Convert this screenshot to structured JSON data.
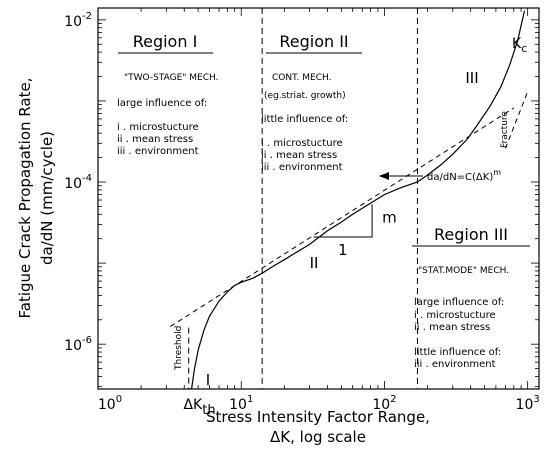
{
  "chart_data": {
    "type": "line",
    "title": "",
    "xlabel_line1": "Stress Intensity Factor Range,",
    "xlabel_line2": "ΔK, log scale",
    "ylabel_line1": "Fatigue Crack Propagation Rate,",
    "ylabel_line2": "da/dN  (mm/cycle)",
    "x_scale": "log",
    "y_scale": "log",
    "xlim": [
      1,
      1200
    ],
    "ylim": [
      2.8e-07,
      0.014
    ],
    "x_ticks": [
      {
        "value": 1,
        "base": "10",
        "exp": "0"
      },
      {
        "value": 10,
        "base": "10",
        "exp": "1"
      },
      {
        "value": 100,
        "base": "10",
        "exp": "2"
      },
      {
        "value": 1000,
        "base": "10",
        "exp": "3"
      }
    ],
    "y_ticks": [
      {
        "value": 1e-06,
        "base": "10",
        "exp": "-6"
      },
      {
        "value": 0.0001,
        "base": "10",
        "exp": "-4"
      },
      {
        "value": 0.01,
        "base": "10",
        "exp": "-2"
      }
    ],
    "region_boundaries_x": [
      14,
      170
    ],
    "threshold_x": 4.5,
    "threshold_label": "ΔK",
    "threshold_sub": "th",
    "series": [
      {
        "x": [
          4.5,
          4.7,
          5,
          5.5,
          6,
          7,
          8,
          9,
          10,
          12,
          14,
          17,
          20,
          25,
          30,
          40,
          50,
          60,
          80,
          100,
          130,
          170,
          200,
          250,
          300,
          380,
          450,
          550,
          650,
          750,
          850,
          950
        ],
        "y": [
          2.8e-07,
          4.8e-07,
          8.4e-07,
          1.5e-06,
          2.2e-06,
          3.4e-06,
          4.4e-06,
          5.3e-06,
          5.8e-06,
          6.5e-06,
          7.5e-06,
          9.3e-06,
          1.1e-05,
          1.4e-05,
          1.7e-05,
          2.5e-05,
          3.2e-05,
          4e-05,
          5.5e-05,
          7e-05,
          8.5e-05,
          0.0001,
          0.000122,
          0.000165,
          0.00022,
          0.00034,
          0.00052,
          0.00088,
          0.0015,
          0.0028,
          0.0055,
          0.013
        ]
      }
    ],
    "paris_fit_line": {
      "x": [
        3.2,
        800
      ],
      "y": [
        1.65e-06,
        0.00082
      ]
    },
    "slope_triangle": {
      "x1": 32,
      "x2": 82,
      "y1": 2.1e-05,
      "y2": 5.3e-05,
      "run_label": "1",
      "rise_label": "m"
    },
    "fracture_line": {
      "x": [
        700,
        1000
      ],
      "y": [
        0.00026,
        0.0013
      ],
      "label": "Fracture"
    },
    "kc_label": "K",
    "kc_sub": "c",
    "curve_stage_labels": {
      "stage1": "I",
      "stage2": "II",
      "stage3": "III"
    },
    "threshold_text": "Threshold",
    "equation": {
      "text": "da/dN=C(ΔK)",
      "sup": "m"
    },
    "regions": [
      {
        "title": "Region I",
        "mechanism": "\"TWO-STAGE\" MECH.",
        "influence1": "large influence of:",
        "items1": [
          "i  . microstucture",
          "ii  . mean stress",
          "iii  . environment"
        ]
      },
      {
        "title": "Region II",
        "mechanism": "CONT. MECH.",
        "note": "(eg.striat. growth)",
        "influence1": "little influence of:",
        "items1": [
          "i  . microstucture",
          "ii  . mean stress",
          "iii  . environment"
        ]
      },
      {
        "title": "Region III",
        "mechanism": "\"STAT.MODE\" MECH.",
        "influence1": "large influence of:",
        "items1": [
          "i  . microstucture",
          "ii  . mean stress"
        ],
        "influence2": "little influence of:",
        "items2": [
          "iii  . environment"
        ]
      }
    ]
  }
}
